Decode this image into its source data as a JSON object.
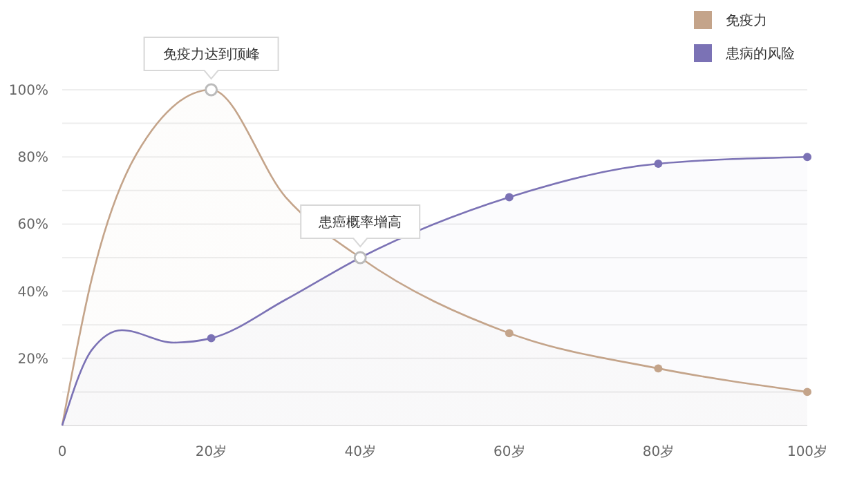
{
  "chart_data": {
    "type": "area",
    "xlim": [
      0,
      100
    ],
    "ylim": [
      0,
      100
    ],
    "xticks": [
      0,
      {
        "value": 20,
        "label": "20岁"
      },
      {
        "value": 40,
        "label": "40岁"
      },
      {
        "value": 60,
        "label": "60岁"
      },
      {
        "value": 80,
        "label": "80岁"
      },
      {
        "value": 100,
        "label": "100岁"
      }
    ],
    "yticks": [
      {
        "value": 0,
        "label": null
      },
      {
        "value": 10,
        "label": null
      },
      {
        "value": 20,
        "label": "20%"
      },
      {
        "value": 30,
        "label": null
      },
      {
        "value": 40,
        "label": "40%"
      },
      {
        "value": 50,
        "label": null
      },
      {
        "value": 60,
        "label": "60%"
      },
      {
        "value": 70,
        "label": null
      },
      {
        "value": 80,
        "label": "80%"
      },
      {
        "value": 90,
        "label": null
      },
      {
        "value": 100,
        "label": "100%"
      }
    ],
    "grid": "y",
    "legend": "top right",
    "marker": "none",
    "series": [
      {
        "name": "免疫力",
        "color": "#c4a48a",
        "x": [
          0,
          4,
          10,
          20,
          30,
          40,
          60,
          80,
          100
        ],
        "values": [
          0,
          44,
          81,
          100,
          68,
          50,
          27.5,
          17,
          10
        ]
      },
      {
        "name": "患病的风险",
        "color": "#7b72b5",
        "x": [
          0,
          4,
          8,
          15,
          20,
          30,
          40,
          60,
          80,
          100
        ],
        "values": [
          0,
          22.6,
          28.4,
          24.7,
          26,
          37.5,
          50,
          68,
          78,
          80
        ]
      },
      {
        "type": "scatter",
        "color": "#c4a48a",
        "marker": "circle",
        "x": [
          60,
          80,
          100
        ],
        "values": [
          27.5,
          17,
          10
        ]
      },
      {
        "type": "scatter",
        "color": "#7b72b5",
        "marker": "circle",
        "x": [
          20,
          60,
          80,
          100
        ],
        "values": [
          26,
          68,
          78,
          80
        ]
      }
    ],
    "annotations": [
      {
        "text": "免疫力达到顶峰",
        "x": 20,
        "y": 100
      },
      {
        "text": "患癌概率增高",
        "x": 40,
        "y": 50
      }
    ]
  }
}
